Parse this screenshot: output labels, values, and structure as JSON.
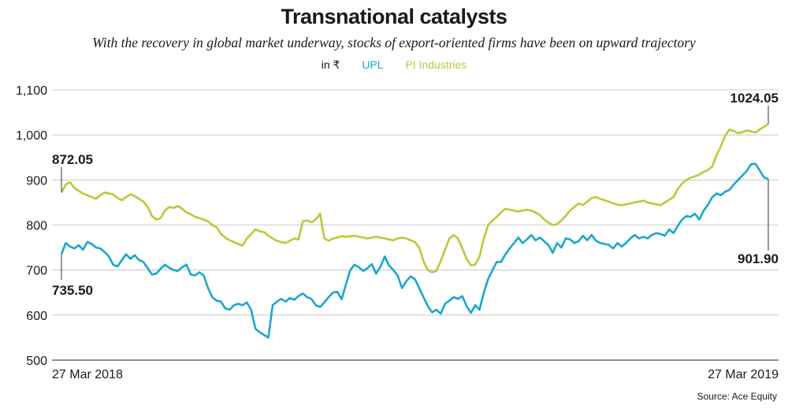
{
  "chart_data": {
    "type": "line",
    "title": "Transnational catalysts",
    "subtitle": "With the recovery in global market underway, stocks of export-oriented firms have been on upward trajectory",
    "unit_label": "in ₹",
    "source": "Source: Ace Equity",
    "x_start_label": "27 Mar 2018",
    "x_end_label": "27 Mar 2019",
    "ylim": [
      500,
      1100
    ],
    "yticks": [
      500,
      600,
      700,
      800,
      900,
      1000,
      1100
    ],
    "ytick_labels": [
      "500",
      "600",
      "700",
      "800",
      "900",
      "1,000",
      "1,100"
    ],
    "grid": true,
    "legend_placement": "top-center",
    "series": [
      {
        "name": "UPL",
        "color": "#1aa7cc",
        "start_label": "735.50",
        "end_label": "901.90",
        "values": [
          735.5,
          760,
          752,
          748,
          755,
          745,
          762,
          758,
          750,
          748,
          740,
          730,
          712,
          708,
          722,
          735,
          725,
          733,
          722,
          718,
          704,
          690,
          692,
          703,
          712,
          705,
          700,
          698,
          706,
          712,
          690,
          688,
          695,
          688,
          660,
          640,
          632,
          630,
          615,
          612,
          622,
          625,
          622,
          628,
          612,
          570,
          562,
          556,
          550,
          622,
          630,
          636,
          630,
          638,
          634,
          642,
          648,
          640,
          636,
          622,
          618,
          628,
          640,
          650,
          652,
          635,
          668,
          700,
          712,
          706,
          698,
          704,
          713,
          692,
          707,
          730,
          710,
          700,
          688,
          660,
          675,
          686,
          680,
          660,
          640,
          620,
          606,
          612,
          603,
          625,
          632,
          640,
          636,
          642,
          620,
          605,
          622,
          612,
          650,
          680,
          700,
          718,
          718,
          735,
          748,
          760,
          772,
          760,
          768,
          778,
          766,
          772,
          764,
          755,
          738,
          760,
          750,
          770,
          768,
          760,
          764,
          776,
          766,
          778,
          765,
          760,
          758,
          756,
          748,
          760,
          752,
          760,
          770,
          778,
          770,
          774,
          770,
          778,
          782,
          780,
          776,
          790,
          782,
          798,
          812,
          820,
          818,
          825,
          812,
          832,
          845,
          862,
          870,
          866,
          874,
          878,
          890,
          900,
          910,
          920,
          935,
          936,
          921,
          906,
          901.9
        ]
      },
      {
        "name": "PI Industries",
        "color": "#b5cc3a",
        "start_label": "872.05",
        "end_label": "1024.05",
        "values": [
          872.05,
          890,
          895,
          882,
          876,
          870,
          866,
          862,
          858,
          866,
          872,
          870,
          868,
          860,
          855,
          862,
          868,
          864,
          858,
          852,
          840,
          820,
          812,
          815,
          832,
          840,
          838,
          842,
          836,
          828,
          824,
          818,
          815,
          812,
          808,
          800,
          795,
          780,
          772,
          766,
          762,
          758,
          754,
          770,
          780,
          790,
          786,
          784,
          776,
          770,
          765,
          762,
          760,
          765,
          770,
          768,
          808,
          810,
          806,
          812,
          825,
          770,
          765,
          770,
          772,
          775,
          774,
          775,
          776,
          774,
          772,
          770,
          772,
          774,
          772,
          770,
          768,
          766,
          770,
          772,
          770,
          766,
          762,
          750,
          720,
          700,
          695,
          698,
          720,
          745,
          770,
          778,
          770,
          748,
          725,
          710,
          712,
          730,
          770,
          800,
          810,
          818,
          828,
          836,
          834,
          832,
          830,
          832,
          834,
          832,
          828,
          822,
          812,
          805,
          800,
          802,
          810,
          820,
          832,
          840,
          848,
          844,
          852,
          860,
          862,
          858,
          855,
          852,
          848,
          845,
          844,
          846,
          848,
          850,
          852,
          854,
          850,
          848,
          846,
          844,
          850,
          856,
          862,
          880,
          892,
          900,
          905,
          908,
          912,
          918,
          922,
          930,
          955,
          975,
          998,
          1012,
          1008,
          1004,
          1006,
          1010,
          1008,
          1005,
          1012,
          1018,
          1024.05
        ]
      }
    ]
  }
}
